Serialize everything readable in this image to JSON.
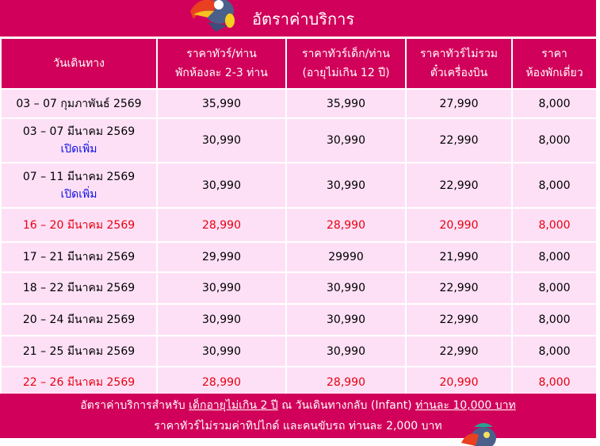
{
  "title": "อัตราค่าบริการ",
  "headers": [
    [
      "วันเดินทาง",
      ""
    ],
    [
      "ราคาทัวร์/ท่าน",
      "พักห้องละ 2-3 ท่าน"
    ],
    [
      "ราคาทัวร์เด็ก/ท่าน",
      "(อายุไม่เกิน 12 ปี)"
    ],
    [
      "ราคาทัวร์ไม่รวม",
      "ตั๋วเครื่องบิน"
    ],
    [
      "ราคา",
      "ห้องพักเดี่ยว"
    ]
  ],
  "rows": [
    {
      "date": "03 – 07 กุมภาพันธ์ 2569",
      "note": "",
      "adult": "35,990",
      "child": "35,990",
      "noflight": "27,990",
      "single": "8,000",
      "highlight": false
    },
    {
      "date": "03 – 07 มีนาคม 2569",
      "note": "เปิดเพิ่ม",
      "adult": "30,990",
      "child": "30,990",
      "noflight": "22,990",
      "single": "8,000",
      "highlight": false
    },
    {
      "date": "07 – 11 มีนาคม 2569",
      "note": "เปิดเพิ่ม",
      "adult": "30,990",
      "child": "30,990",
      "noflight": "22,990",
      "single": "8,000",
      "highlight": false
    },
    {
      "date": "16 – 20 มีนาคม 2569",
      "note": "",
      "adult": "28,990",
      "child": "28,990",
      "noflight": "20,990",
      "single": "8,000",
      "highlight": true
    },
    {
      "date": "17 – 21 มีนาคม 2569",
      "note": "",
      "adult": "29,990",
      "child": "29990",
      "noflight": "21,990",
      "single": "8,000",
      "highlight": false
    },
    {
      "date": "18 – 22 มีนาคม 2569",
      "note": "",
      "adult": "30,990",
      "child": "30,990",
      "noflight": "22,990",
      "single": "8,000",
      "highlight": false
    },
    {
      "date": "20 – 24 มีนาคม 2569",
      "note": "",
      "adult": "30,990",
      "child": "30,990",
      "noflight": "22,990",
      "single": "8,000",
      "highlight": false
    },
    {
      "date": "21 – 25 มีนาคม 2569",
      "note": "",
      "adult": "30,990",
      "child": "30,990",
      "noflight": "22,990",
      "single": "8,000",
      "highlight": false
    },
    {
      "date": "22 – 26 มีนาคม 2569",
      "note": "",
      "adult": "28,990",
      "child": "28,990",
      "noflight": "20,990",
      "single": "8,000",
      "highlight": true
    }
  ],
  "footer": {
    "line1_a": "อัตราค่าบริการสำหรับ ",
    "line1_b": "เด็กอายุไม่เกิน 2 ปี",
    "line1_c": " ณ วันเดินทางกลับ (Infant) ",
    "line1_d": "ท่านละ 10,000 บาท",
    "line2": "ราคาทัวร์ไม่รวมค่าทิปไกด์ และคนขับรถ ท่านละ 2,000 บาท"
  },
  "colors": {
    "brand": "#d1005a",
    "row_bg": "#fde0f6",
    "highlight": "#e8000f",
    "note": "#1010e8"
  },
  "icons": [
    "toucan-mascot-icon"
  ]
}
